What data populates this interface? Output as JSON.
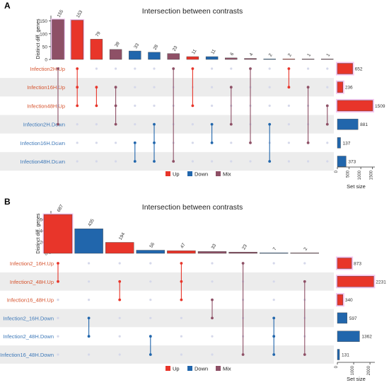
{
  "colors": {
    "up": "#e8352a",
    "down": "#2166ac",
    "mix": "#8e5066",
    "up_label": "#d6542f",
    "down_label": "#3d78b8",
    "band": "#ececec",
    "dot_off": "#d5d8ea",
    "highlight": "#f7c6f0"
  },
  "chart_data": [
    {
      "panel_label": "A",
      "type": "bar",
      "title": "Intersection between contrasts",
      "ylabel": "Distinct diff. genes",
      "ylim": [
        0,
        160
      ],
      "yticks": [
        0,
        50,
        100,
        150
      ],
      "sets": [
        {
          "name": "Infection2H.Up",
          "direction": "up",
          "size": 652
        },
        {
          "name": "Infection16H.Up",
          "direction": "up",
          "size": 236
        },
        {
          "name": "Infection48H.Up",
          "direction": "up",
          "size": 1509
        },
        {
          "name": "Infection2H.Down",
          "direction": "down",
          "size": 881
        },
        {
          "name": "Infection16H.Down",
          "direction": "down",
          "size": 137
        },
        {
          "name": "Infection48H.Down",
          "direction": "down",
          "size": 373
        }
      ],
      "set_size_xlabel": "Set size",
      "set_size_xlim": [
        0,
        1600
      ],
      "set_size_ticks": [
        0,
        500,
        1000,
        1500
      ],
      "intersections": [
        {
          "value": 155,
          "type": "mix",
          "members": [
            0,
            3
          ]
        },
        {
          "value": 153,
          "type": "up",
          "members": [
            0,
            1,
            2
          ]
        },
        {
          "value": 79,
          "type": "up",
          "members": [
            1,
            2
          ]
        },
        {
          "value": 39,
          "type": "mix",
          "members": [
            1,
            2,
            3
          ]
        },
        {
          "value": 33,
          "type": "down",
          "members": [
            4,
            5
          ]
        },
        {
          "value": 28,
          "type": "down",
          "members": [
            3,
            4,
            5
          ]
        },
        {
          "value": 23,
          "type": "mix",
          "members": [
            0,
            5
          ]
        },
        {
          "value": 11,
          "type": "up",
          "members": [
            0,
            2
          ]
        },
        {
          "value": 11,
          "type": "down",
          "members": [
            3,
            4
          ]
        },
        {
          "value": 6,
          "type": "mix",
          "members": [
            1,
            3
          ]
        },
        {
          "value": 4,
          "type": "mix",
          "members": [
            0,
            4
          ]
        },
        {
          "value": 2,
          "type": "down",
          "members": [
            3,
            5
          ]
        },
        {
          "value": 2,
          "type": "up",
          "members": [
            0,
            1
          ]
        },
        {
          "value": 1,
          "type": "mix",
          "members": [
            1,
            4
          ]
        },
        {
          "value": 1,
          "type": "mix",
          "members": [
            2,
            3
          ]
        }
      ],
      "legend": [
        {
          "label": "Up",
          "type": "up"
        },
        {
          "label": "Down",
          "type": "down"
        },
        {
          "label": "Mix",
          "type": "mix"
        }
      ]
    },
    {
      "panel_label": "B",
      "type": "bar",
      "title": "Intersection between contrasts",
      "ylabel": "Distinct diff. genes",
      "ylim": [
        0,
        700
      ],
      "yticks": [
        0,
        200,
        400,
        600
      ],
      "sets": [
        {
          "name": "Infection2_16H.Up",
          "direction": "up",
          "size": 873
        },
        {
          "name": "Infection2_48H.Up",
          "direction": "up",
          "size": 2231
        },
        {
          "name": "Infection16_48H.Up",
          "direction": "up",
          "size": 340
        },
        {
          "name": "Infection2_16H.Down",
          "direction": "down",
          "size": 597
        },
        {
          "name": "Infection2_48H.Down",
          "direction": "down",
          "size": 1362
        },
        {
          "name": "Infection16_48H.Down",
          "direction": "down",
          "size": 131
        }
      ],
      "set_size_xlabel": "Set size",
      "set_size_xlim": [
        0,
        2300
      ],
      "set_size_ticks": [
        0,
        1000,
        2000
      ],
      "intersections": [
        {
          "value": 687,
          "type": "up",
          "members": [
            0,
            1
          ]
        },
        {
          "value": 435,
          "type": "down",
          "members": [
            3,
            4
          ]
        },
        {
          "value": 194,
          "type": "up",
          "members": [
            1,
            2
          ]
        },
        {
          "value": 56,
          "type": "down",
          "members": [
            4,
            5
          ]
        },
        {
          "value": 47,
          "type": "up",
          "members": [
            0,
            1,
            2
          ]
        },
        {
          "value": 33,
          "type": "mix",
          "members": [
            2,
            3
          ]
        },
        {
          "value": 23,
          "type": "mix",
          "members": [
            0,
            5
          ]
        },
        {
          "value": 7,
          "type": "down",
          "members": [
            3,
            4,
            5
          ]
        },
        {
          "value": 2,
          "type": "mix",
          "members": [
            1,
            5
          ]
        }
      ],
      "legend": [
        {
          "label": "Up",
          "type": "up"
        },
        {
          "label": "Down",
          "type": "down"
        },
        {
          "label": "Mix",
          "type": "mix"
        }
      ]
    }
  ]
}
